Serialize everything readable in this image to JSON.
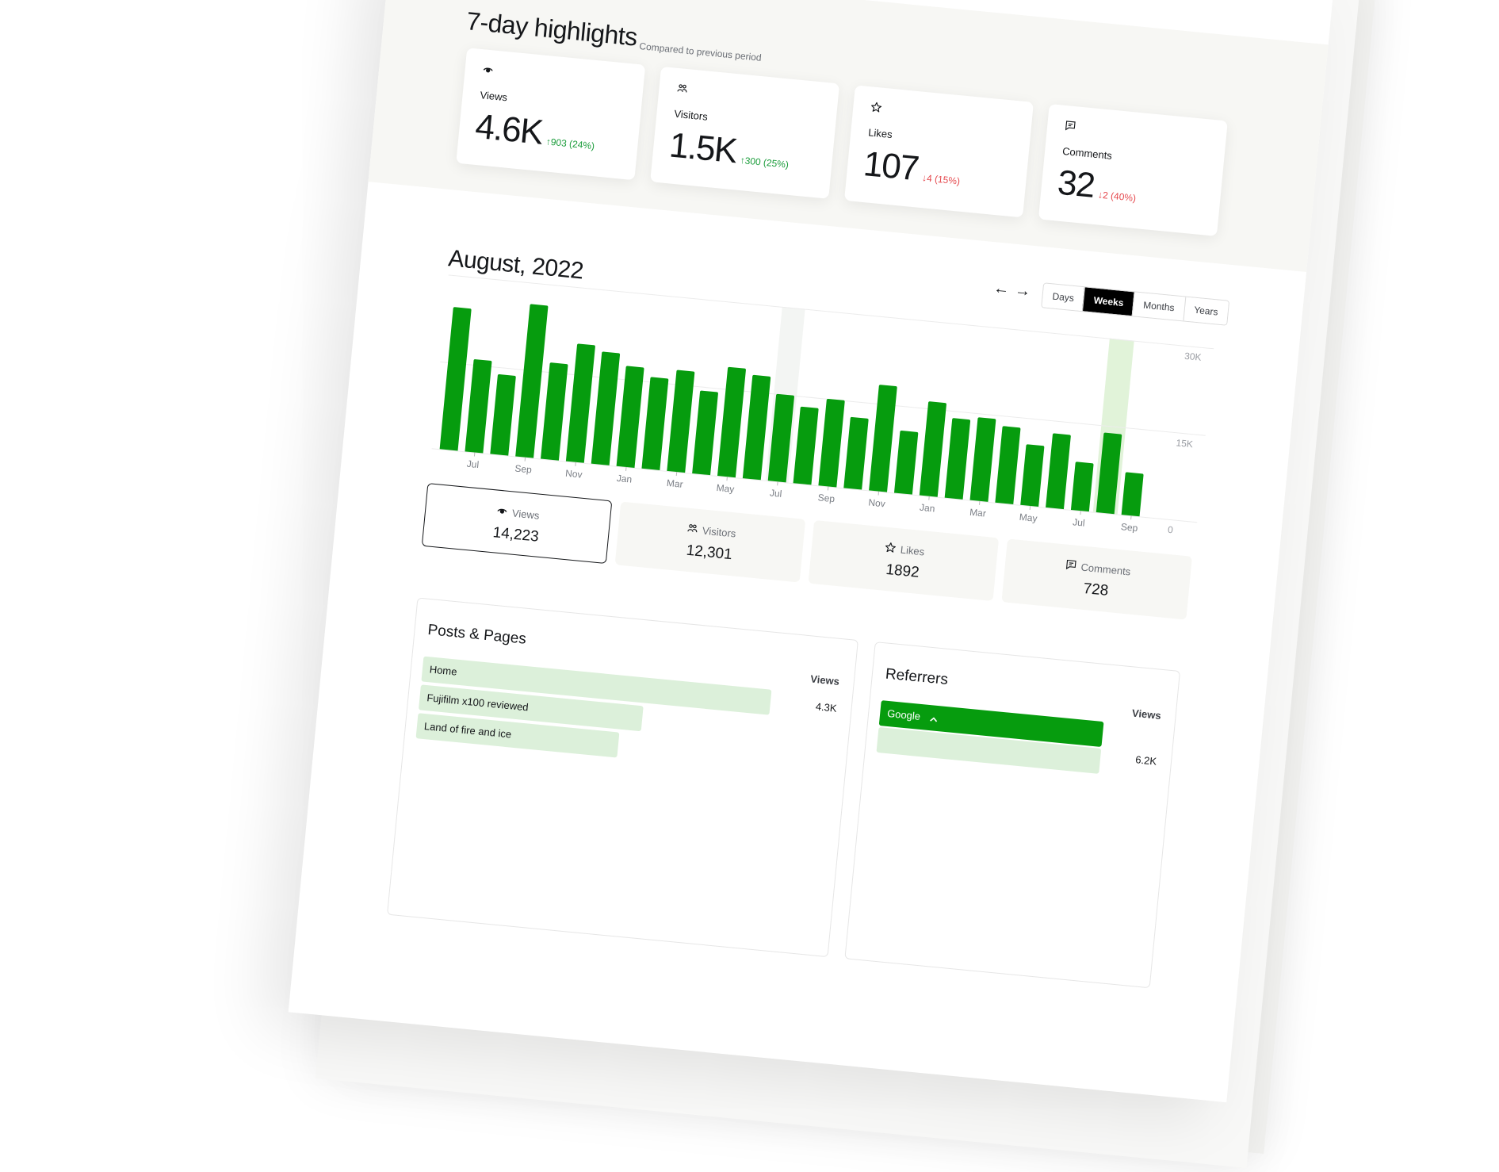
{
  "colors": {
    "accent": "#069c0e",
    "accent_light": "#dcf0da",
    "up": "#1a9c3a",
    "down": "#e5484d",
    "panel_bg": "#f7f7f4"
  },
  "highlights": {
    "title": "7-day highlights",
    "subtitle": "Compared to previous period",
    "cards": [
      {
        "icon": "eye-icon",
        "label": "Views",
        "value": "4.6K",
        "change": "↑903 (24%)",
        "direction": "up"
      },
      {
        "icon": "users-icon",
        "label": "Visitors",
        "value": "1.5K",
        "change": "↑300 (25%)",
        "direction": "up"
      },
      {
        "icon": "star-icon",
        "label": "Likes",
        "value": "107",
        "change": "↓4 (15%)",
        "direction": "down"
      },
      {
        "icon": "comment-icon",
        "label": "Comments",
        "value": "32",
        "change": "↓2 (40%)",
        "direction": "down"
      }
    ]
  },
  "period": {
    "title": "August, 2022",
    "prev_icon": "arrow-left-icon",
    "next_icon": "arrow-right-icon",
    "prev": "←",
    "next": "→",
    "ranges": [
      "Days",
      "Weeks",
      "Months",
      "Years"
    ],
    "selected_range": "Weeks"
  },
  "chart_data": {
    "type": "bar",
    "values": [
      24500,
      16000,
      13800,
      26300,
      16700,
      20300,
      19300,
      17300,
      15800,
      17500,
      14300,
      18800,
      17800,
      15000,
      13200,
      15000,
      12300,
      18300,
      10800,
      16200,
      13800,
      14300,
      13200,
      10500,
      12800,
      8300,
      13800,
      7400
    ],
    "tick_labels": [
      "Jul",
      "Sep",
      "Nov",
      "Jan",
      "Mar",
      "May",
      "Jul",
      "Sep",
      "Nov",
      "Jan",
      "Mar",
      "May",
      "Jul",
      "Sep"
    ],
    "y_ticks": [
      "30K",
      "15K",
      "0"
    ],
    "ylim": [
      0,
      30000
    ],
    "highlighted_index": 26,
    "hovered_index": 13,
    "grid": true,
    "color": "#069c0e"
  },
  "stats": [
    {
      "icon": "eye-icon",
      "label": "Views",
      "value": "14,223",
      "selected": true
    },
    {
      "icon": "users-icon",
      "label": "Visitors",
      "value": "12,301",
      "selected": false
    },
    {
      "icon": "star-icon",
      "label": "Likes",
      "value": "1892",
      "selected": false
    },
    {
      "icon": "comment-icon",
      "label": "Comments",
      "value": "728",
      "selected": false
    }
  ],
  "posts": {
    "title": "Posts & Pages",
    "column": "Views",
    "rows": [
      {
        "title": "Home",
        "value": "4.3K",
        "share": 0.97
      },
      {
        "title": "Fujifilm x100 reviewed",
        "share": 0.62
      },
      {
        "title": "Land of fire and ice",
        "share": 0.56
      }
    ]
  },
  "referrers": {
    "title": "Referrers",
    "column": "Views",
    "rows": [
      {
        "title": "Google",
        "value": "6.2K",
        "expanded": true,
        "chevron": "chevron-up-icon"
      }
    ]
  }
}
